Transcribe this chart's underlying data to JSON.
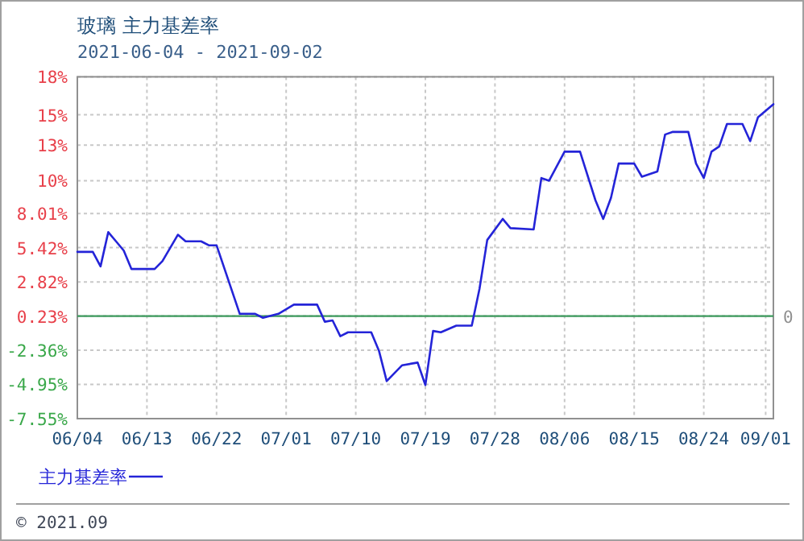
{
  "chart_data": {
    "type": "line",
    "title": "玻璃  主力基差率",
    "subtitle": "2021-06-04 - 2021-09-02",
    "annotations": [
      "© 2021.09"
    ],
    "x": [
      "2021-06-04",
      "2021-06-06",
      "2021-06-07",
      "2021-06-08",
      "2021-06-09",
      "2021-06-10",
      "2021-06-11",
      "2021-06-14",
      "2021-06-15",
      "2021-06-17",
      "2021-06-18",
      "2021-06-20",
      "2021-06-21",
      "2021-06-22",
      "2021-06-25",
      "2021-06-27",
      "2021-06-28",
      "2021-06-30",
      "2021-07-02",
      "2021-07-05",
      "2021-07-06",
      "2021-07-07",
      "2021-07-08",
      "2021-07-09",
      "2021-07-12",
      "2021-07-13",
      "2021-07-14",
      "2021-07-16",
      "2021-07-18",
      "2021-07-19",
      "2021-07-20",
      "2021-07-21",
      "2021-07-23",
      "2021-07-25",
      "2021-07-26",
      "2021-07-27",
      "2021-07-29",
      "2021-07-30",
      "2021-08-02",
      "2021-08-03",
      "2021-08-04",
      "2021-08-06",
      "2021-08-08",
      "2021-08-10",
      "2021-08-11",
      "2021-08-12",
      "2021-08-13",
      "2021-08-15",
      "2021-08-16",
      "2021-08-18",
      "2021-08-19",
      "2021-08-20",
      "2021-08-22",
      "2021-08-23",
      "2021-08-24",
      "2021-08-25",
      "2021-08-26",
      "2021-08-27",
      "2021-08-29",
      "2021-08-30",
      "2021-08-31",
      "2021-09-02"
    ],
    "series": [
      {
        "name": "主力基差率",
        "color": "#2424d8",
        "values": [
          5.1,
          5.1,
          4.0,
          6.6,
          5.9,
          5.2,
          3.8,
          3.8,
          4.4,
          6.4,
          5.9,
          5.9,
          5.6,
          5.6,
          0.4,
          0.4,
          0.1,
          0.4,
          1.1,
          1.1,
          -0.2,
          -0.1,
          -1.3,
          -1.0,
          -1.0,
          -2.4,
          -4.7,
          -3.5,
          -3.3,
          -5.0,
          -0.9,
          -1.0,
          -0.5,
          -0.5,
          2.3,
          6.0,
          7.6,
          6.9,
          6.8,
          10.7,
          10.5,
          12.7,
          12.7,
          9.0,
          7.6,
          9.2,
          11.8,
          11.8,
          10.8,
          11.2,
          14.0,
          14.2,
          14.2,
          11.8,
          10.7,
          12.7,
          13.1,
          14.8,
          14.8,
          13.5,
          15.3,
          16.3
        ]
      }
    ],
    "xlim": [
      "2021-06-04",
      "2021-09-02"
    ],
    "xticks": [
      {
        "value": "2021-06-04",
        "label": "06/04"
      },
      {
        "value": "2021-06-13",
        "label": "06/13"
      },
      {
        "value": "2021-06-22",
        "label": "06/22"
      },
      {
        "value": "2021-07-01",
        "label": "07/01"
      },
      {
        "value": "2021-07-10",
        "label": "07/10"
      },
      {
        "value": "2021-07-19",
        "label": "07/19"
      },
      {
        "value": "2021-07-28",
        "label": "07/28"
      },
      {
        "value": "2021-08-06",
        "label": "08/06"
      },
      {
        "value": "2021-08-15",
        "label": "08/15"
      },
      {
        "value": "2021-08-24",
        "label": "08/24"
      },
      {
        "value": "2021-09-01",
        "label": "09/01"
      }
    ],
    "ylim": [
      -7.55,
      18.38
    ],
    "yticks": [
      {
        "value": -7.55,
        "label": "-7.55%"
      },
      {
        "value": -4.95,
        "label": "-4.95%"
      },
      {
        "value": -2.36,
        "label": "-2.36%"
      },
      {
        "value": 0.23,
        "label": "0.23%"
      },
      {
        "value": 2.82,
        "label": "2.82%"
      },
      {
        "value": 5.42,
        "label": "5.42%"
      },
      {
        "value": 8.01,
        "label": "8.01%"
      },
      {
        "value": 10.5,
        "label": "10%"
      },
      {
        "value": 13.2,
        "label": "13%"
      },
      {
        "value": 15.5,
        "label": "15%"
      },
      {
        "value": 18.38,
        "label": "18%"
      }
    ],
    "ref_lines": [
      {
        "axis": "y",
        "value": 0.23,
        "label": "0",
        "color": "#3c9a5c"
      }
    ],
    "grid": true,
    "legend": "bottom left",
    "marker": "none",
    "line_style": "solid"
  }
}
